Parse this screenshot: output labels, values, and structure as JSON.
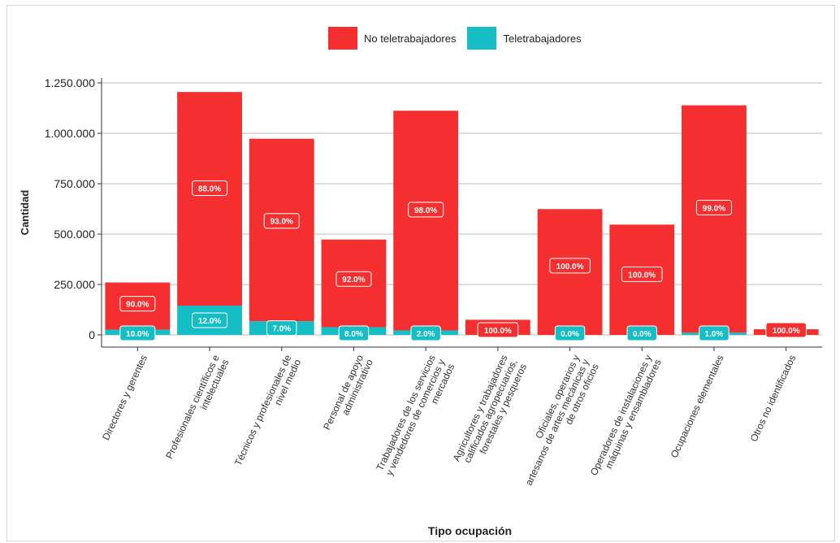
{
  "chart_data": {
    "type": "bar",
    "stacked": true,
    "xlabel": "Tipo ocupación",
    "ylabel": "Cantidad",
    "ylim": [
      0,
      1250000
    ],
    "yticks": [
      0,
      250000,
      500000,
      750000,
      1000000,
      1250000
    ],
    "ytick_labels": [
      "0",
      "250.000",
      "500.000",
      "750.000",
      "1.000.000",
      "1.250.000"
    ],
    "legend_position": "top",
    "grid": true,
    "categories": [
      "Directores y gerentes",
      "Profesionales científicos e intelectuales",
      "Técnicos y profesionales de nivel medio",
      "Personal de apoyo administrativo",
      "Trabajadores de los servicios y vendedores de comercios y mercados",
      "Agricultores y trabajadores calificados agropecuarios, forestales y pesqueros",
      "Oficiales, operarios y artesanos de artes mecánicas y de otros oficios",
      "Operadores de instalaciones y máquinas y ensambladores",
      "Ocupaciones elementales",
      "Otros no identificados"
    ],
    "category_lines": [
      [
        "Directores y gerentes"
      ],
      [
        "Profesionales científicos e",
        "intelectuales"
      ],
      [
        "Técnicos y profesionales de",
        "nivel medio"
      ],
      [
        "Personal de apoyo",
        "administrativo"
      ],
      [
        "Trabajadores de los servicios",
        "y vendedores de comercios y",
        "mercados"
      ],
      [
        "Agricultores y trabajadores",
        "calificados agropecuarios,",
        "forestales y pesqueros"
      ],
      [
        "Oficiales, operarios y",
        "artesanos de artes mecánicas y",
        "de otros oficios"
      ],
      [
        "Operadores de instalaciones y",
        "máquinas y ensambladores"
      ],
      [
        "Ocupaciones elementales"
      ],
      [
        "Otros no identificados"
      ]
    ],
    "series": [
      {
        "name": "No teletrabajadores",
        "color": "#f52f2f",
        "values": [
          234000,
          1060000,
          905000,
          435000,
          1090000,
          75000,
          624000,
          547000,
          1128000,
          28000
        ],
        "labels": [
          "90.0%",
          "88.0%",
          "93.0%",
          "92.0%",
          "98.0%",
          "100.0%",
          "100.0%",
          "100.0%",
          "99.0%",
          "100.0%"
        ]
      },
      {
        "name": "Teletrabajadores",
        "color": "#15bdc4",
        "values": [
          26000,
          145000,
          68000,
          38000,
          22000,
          0,
          0,
          0,
          11000,
          0
        ],
        "labels": [
          "10.0%",
          "12.0%",
          "7.0%",
          "8.0%",
          "2.0%",
          "",
          "0.0%",
          "0.0%",
          "1.0%",
          ""
        ]
      }
    ]
  }
}
